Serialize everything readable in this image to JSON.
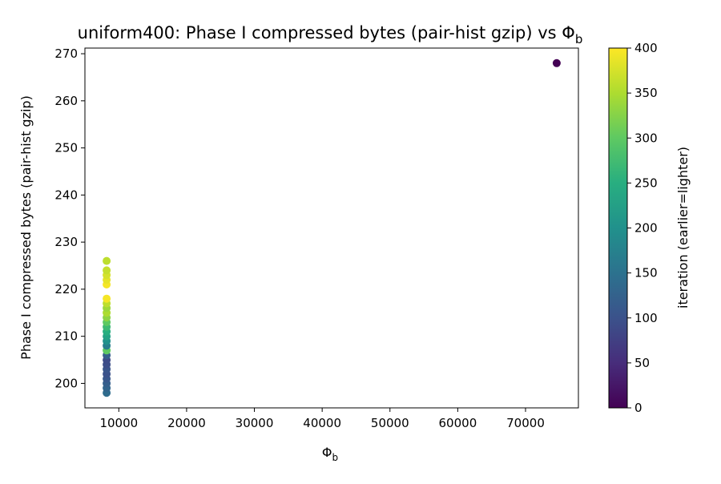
{
  "chart_data": {
    "type": "scatter",
    "title": "uniform400: Phase I compressed bytes (pair-hist gzip) vs Φ",
    "title_subscript": "b",
    "xlabel": "Φ",
    "xlabel_subscript": "b",
    "ylabel": "Phase I compressed bytes (pair-hist gzip)",
    "xlim": [
      5000,
      77800
    ],
    "ylim": [
      194.8,
      271.2
    ],
    "xticks": [
      10000,
      20000,
      30000,
      40000,
      50000,
      60000,
      70000
    ],
    "yticks": [
      200,
      210,
      220,
      230,
      240,
      250,
      260,
      270
    ],
    "grid": false,
    "colorbar": {
      "label": "iteration (earlier=lighter)",
      "colormap": "viridis",
      "range": [
        0,
        400
      ],
      "ticks": [
        0,
        50,
        100,
        150,
        200,
        250,
        300,
        350,
        400
      ]
    },
    "points": [
      {
        "x": 74600,
        "y": 268,
        "iteration": 0
      },
      {
        "x": 8200,
        "y": 198,
        "iteration": 140
      },
      {
        "x": 8200,
        "y": 199,
        "iteration": 130
      },
      {
        "x": 8200,
        "y": 200,
        "iteration": 120
      },
      {
        "x": 8200,
        "y": 201,
        "iteration": 110
      },
      {
        "x": 8200,
        "y": 202,
        "iteration": 100
      },
      {
        "x": 8200,
        "y": 203,
        "iteration": 105
      },
      {
        "x": 8200,
        "y": 204,
        "iteration": 95
      },
      {
        "x": 8200,
        "y": 205,
        "iteration": 90
      },
      {
        "x": 8200,
        "y": 206,
        "iteration": 120
      },
      {
        "x": 8200,
        "y": 207,
        "iteration": 300
      },
      {
        "x": 8200,
        "y": 208,
        "iteration": 170
      },
      {
        "x": 8200,
        "y": 209,
        "iteration": 200
      },
      {
        "x": 8200,
        "y": 210,
        "iteration": 230
      },
      {
        "x": 8200,
        "y": 211,
        "iteration": 250
      },
      {
        "x": 8200,
        "y": 212,
        "iteration": 270
      },
      {
        "x": 8200,
        "y": 213,
        "iteration": 300
      },
      {
        "x": 8200,
        "y": 214,
        "iteration": 330
      },
      {
        "x": 8200,
        "y": 215,
        "iteration": 350
      },
      {
        "x": 8200,
        "y": 216,
        "iteration": 340
      },
      {
        "x": 8200,
        "y": 217,
        "iteration": 360
      },
      {
        "x": 8200,
        "y": 218,
        "iteration": 395
      },
      {
        "x": 8200,
        "y": 221,
        "iteration": 395
      },
      {
        "x": 8200,
        "y": 222,
        "iteration": 385
      },
      {
        "x": 8200,
        "y": 223,
        "iteration": 375
      },
      {
        "x": 8200,
        "y": 224,
        "iteration": 365
      },
      {
        "x": 8200,
        "y": 226,
        "iteration": 360
      }
    ]
  }
}
